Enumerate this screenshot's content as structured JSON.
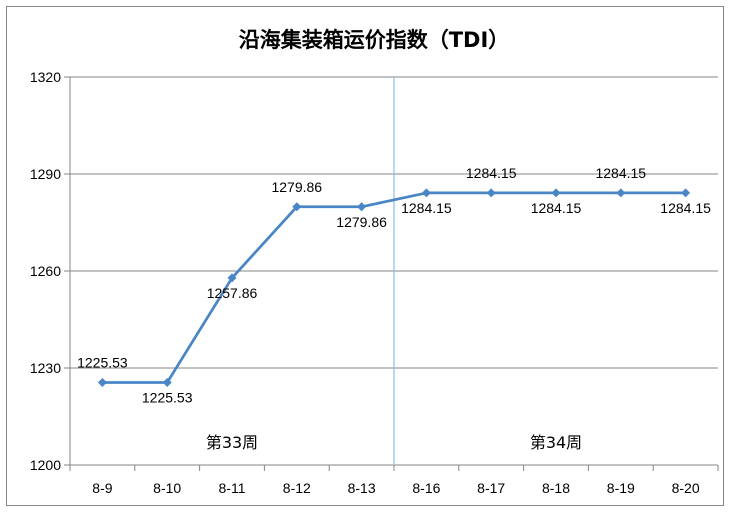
{
  "chart_data": {
    "type": "line",
    "title": "沿海集装箱运价指数（TDI）",
    "xlabel": "",
    "ylabel": "",
    "categories": [
      "8-9",
      "8-10",
      "8-11",
      "8-12",
      "8-13",
      "8-16",
      "8-17",
      "8-18",
      "8-19",
      "8-20"
    ],
    "series": [
      {
        "values": [
          1225.53,
          1225.53,
          1257.86,
          1279.86,
          1279.86,
          1284.15,
          1284.15,
          1284.15,
          1284.15,
          1284.15
        ],
        "labels": [
          "1225.53",
          "1225.53",
          "1257.86",
          "1279.86",
          "1279.86",
          "1284.15",
          "1284.15",
          "1284.15",
          "1284.15",
          "1284.15"
        ],
        "label_positions": [
          "above",
          "below",
          "below",
          "above",
          "below",
          "below",
          "above",
          "below",
          "above",
          "below"
        ],
        "color": "#4a86c6"
      }
    ],
    "ylim": [
      1200,
      1320
    ],
    "yticks": [
      1200,
      1230,
      1260,
      1290,
      1320
    ],
    "grid": true,
    "legend": "none",
    "annotations": [
      {
        "text": "第33周",
        "category_span": [
          "8-9",
          "8-13"
        ]
      },
      {
        "text": "第34周",
        "category_span": [
          "8-16",
          "8-20"
        ]
      }
    ],
    "divider_after_category": "8-13",
    "divider_color": "#8fbce6",
    "gridline_color": "#868686"
  }
}
